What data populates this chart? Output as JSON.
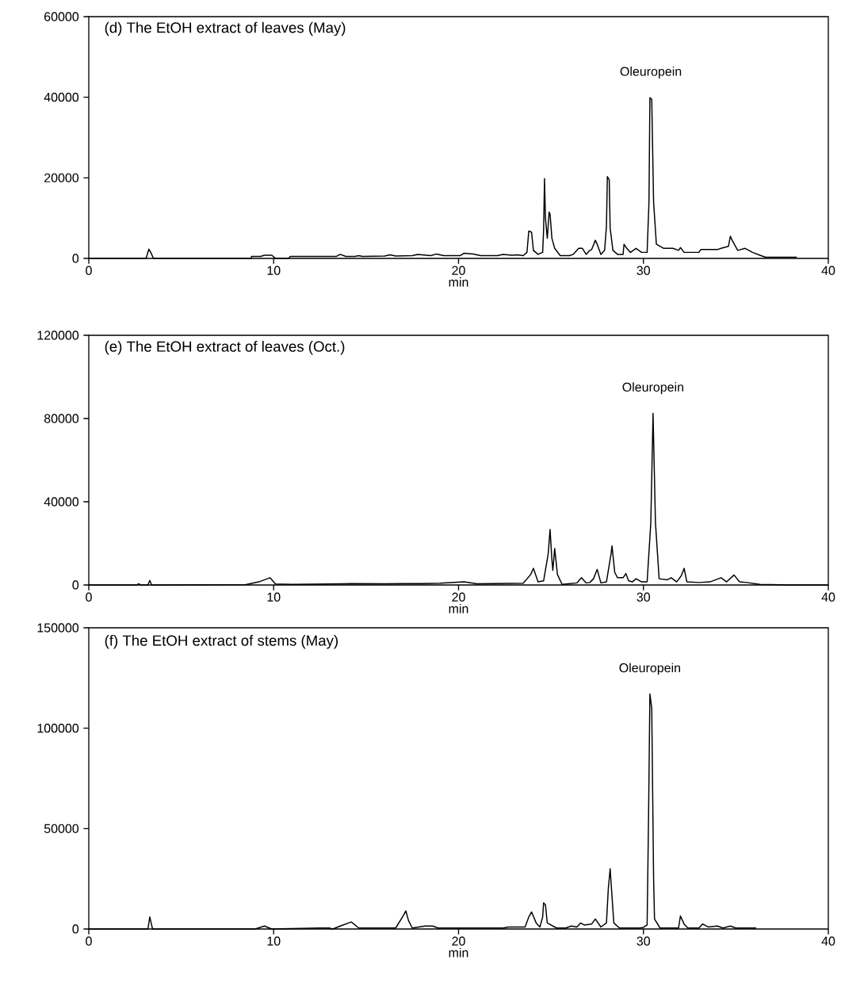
{
  "chart_data": [
    {
      "type": "line",
      "title": "(d) The EtOH extract of leaves (May)",
      "xlabel": "min",
      "color": "#000000",
      "xlim": [
        0,
        40
      ],
      "xticks": [
        0,
        10,
        20,
        30,
        40
      ],
      "ylim": [
        0,
        60000
      ],
      "yticks": [
        0,
        20000,
        40000,
        60000
      ],
      "annotations": [
        {
          "text": "Oleuropein",
          "x": 30.4,
          "y": 39900
        }
      ],
      "x": [
        0,
        3.1,
        3.25,
        3.35,
        3.5,
        8.8,
        8.8,
        9.3,
        9.5,
        9.9,
        10.1,
        10.8,
        10.9,
        13.4,
        13.6,
        13.9,
        14.4,
        14.6,
        14.8,
        16.0,
        16.3,
        16.6,
        17.5,
        17.8,
        18.5,
        18.8,
        19.2,
        20.1,
        20.3,
        20.8,
        21.2,
        22.1,
        22.4,
        22.9,
        23.2,
        23.5,
        23.7,
        23.8,
        23.95,
        24.05,
        24.3,
        24.55,
        24.6,
        24.65,
        24.7,
        24.8,
        24.9,
        24.95,
        25.05,
        25.2,
        25.5,
        26.0,
        26.2,
        26.5,
        26.7,
        26.9,
        27.1,
        27.2,
        27.4,
        27.5,
        27.7,
        27.9,
        28.0,
        28.05,
        28.15,
        28.2,
        28.35,
        28.6,
        28.9,
        28.95,
        29.1,
        29.3,
        29.6,
        29.9,
        30.2,
        30.3,
        30.35,
        30.45,
        30.55,
        30.7,
        31.1,
        31.6,
        31.9,
        32.0,
        32.2,
        33.0,
        33.1,
        34.0,
        34.2,
        34.6,
        34.7,
        34.8,
        35.1,
        35.5,
        35.9,
        36.3,
        36.6,
        38.3
      ],
      "values": [
        0,
        0,
        2300,
        1500,
        0,
        0,
        500,
        500,
        800,
        800,
        0,
        0,
        500,
        500,
        1000,
        500,
        500,
        700,
        500,
        600,
        900,
        600,
        700,
        1000,
        700,
        1100,
        700,
        700,
        1300,
        1100,
        700,
        700,
        1000,
        800,
        900,
        700,
        1500,
        6800,
        6500,
        2000,
        1000,
        1500,
        7000,
        19800,
        10000,
        5000,
        11500,
        11000,
        5000,
        2500,
        700,
        700,
        1000,
        2500,
        2500,
        1000,
        2000,
        2200,
        4500,
        3500,
        1000,
        2000,
        8000,
        20300,
        19500,
        7500,
        2000,
        1000,
        1000,
        3500,
        2500,
        1500,
        2500,
        1500,
        1500,
        14000,
        39900,
        39500,
        14000,
        3500,
        2500,
        2500,
        2000,
        2700,
        1500,
        1500,
        2200,
        2200,
        2500,
        3000,
        5500,
        4500,
        2000,
        2500,
        1500,
        800,
        300,
        300
      ]
    },
    {
      "type": "line",
      "title": "(e) The EtOH extract of leaves (Oct.)",
      "xlabel": "min",
      "color": "#000000",
      "xlim": [
        0,
        40
      ],
      "xticks": [
        0,
        10,
        20,
        30,
        40
      ],
      "ylim": [
        0,
        120000
      ],
      "yticks": [
        0,
        40000,
        80000,
        120000
      ],
      "annotations": [
        {
          "text": "Oleuropein",
          "x": 30.52,
          "y": 82500
        }
      ],
      "x": [
        0,
        2.6,
        2.7,
        2.8,
        3.2,
        3.3,
        3.4,
        8.5,
        9.2,
        9.8,
        10.1,
        11,
        13.8,
        14.2,
        16,
        18,
        19,
        20.3,
        21,
        23.5,
        23.9,
        24.05,
        24.3,
        24.6,
        24.85,
        24.95,
        25.05,
        25.1,
        25.2,
        25.35,
        25.6,
        26.4,
        26.65,
        26.9,
        27.1,
        27.3,
        27.5,
        27.7,
        28.0,
        28.25,
        28.3,
        28.45,
        28.6,
        28.9,
        29.05,
        29.2,
        29.4,
        29.6,
        29.9,
        30.2,
        30.4,
        30.52,
        30.65,
        30.85,
        31.3,
        31.5,
        31.8,
        32.05,
        32.2,
        32.35,
        33,
        33.6,
        34.2,
        34.5,
        34.9,
        35.2,
        35.6,
        36.3,
        38,
        40
      ],
      "values": [
        0,
        0,
        600,
        0,
        0,
        2200,
        0,
        200,
        1500,
        3500,
        500,
        300,
        600,
        700,
        600,
        700,
        900,
        1500,
        600,
        900,
        5000,
        8000,
        1500,
        2000,
        15000,
        26700,
        12000,
        7000,
        17500,
        5000,
        300,
        1000,
        3500,
        1000,
        1200,
        3000,
        7500,
        1000,
        1500,
        15000,
        18800,
        6000,
        3500,
        3500,
        5500,
        2000,
        1500,
        3000,
        1500,
        1500,
        30000,
        82500,
        30000,
        3000,
        2500,
        3500,
        1500,
        4500,
        8000,
        1500,
        1200,
        1500,
        3500,
        1500,
        4800,
        1500,
        1200,
        300,
        0,
        0
      ]
    },
    {
      "type": "line",
      "title": "(f) The EtOH extract of stems (May)",
      "xlabel": "min",
      "color": "#000000",
      "xlim": [
        0,
        40
      ],
      "xticks": [
        0,
        10,
        20,
        30,
        40
      ],
      "ylim": [
        0,
        150000
      ],
      "yticks": [
        0,
        50000,
        100000,
        150000
      ],
      "annotations": [
        {
          "text": "Oleuropein",
          "x": 30.35,
          "y": 117000
        }
      ],
      "x": [
        0,
        3.2,
        3.3,
        3.45,
        9.0,
        9.5,
        9.9,
        12.5,
        13.0,
        13.2,
        13.6,
        14.2,
        14.6,
        16.6,
        17.0,
        17.15,
        17.3,
        17.5,
        18.2,
        18.6,
        18.9,
        22.4,
        22.7,
        23.6,
        23.8,
        23.95,
        24.2,
        24.4,
        24.55,
        24.6,
        24.7,
        24.8,
        25.3,
        25.8,
        26.1,
        26.4,
        26.6,
        26.8,
        27.2,
        27.4,
        27.7,
        28.0,
        28.1,
        28.2,
        28.25,
        28.4,
        28.7,
        29.8,
        30.0,
        30.2,
        30.28,
        30.35,
        30.45,
        30.55,
        30.6,
        30.9,
        31.9,
        32.0,
        32.2,
        32.4,
        33.0,
        33.2,
        33.5,
        34.0,
        34.3,
        34.7,
        35.0,
        36.1
      ],
      "values": [
        0,
        0,
        6000,
        0,
        0,
        1500,
        0,
        500,
        500,
        0,
        1500,
        3500,
        500,
        500,
        6500,
        9000,
        4000,
        500,
        1500,
        1500,
        500,
        500,
        1000,
        1000,
        6000,
        8500,
        3000,
        1000,
        6000,
        13000,
        12000,
        3000,
        500,
        500,
        1500,
        1000,
        3000,
        2000,
        2500,
        5000,
        1000,
        3000,
        20000,
        30000,
        23000,
        3000,
        500,
        500,
        800,
        2000,
        58000,
        117000,
        110000,
        25000,
        5000,
        500,
        500,
        6500,
        2500,
        500,
        500,
        2500,
        1000,
        1500,
        500,
        1500,
        500,
        500
      ]
    }
  ]
}
